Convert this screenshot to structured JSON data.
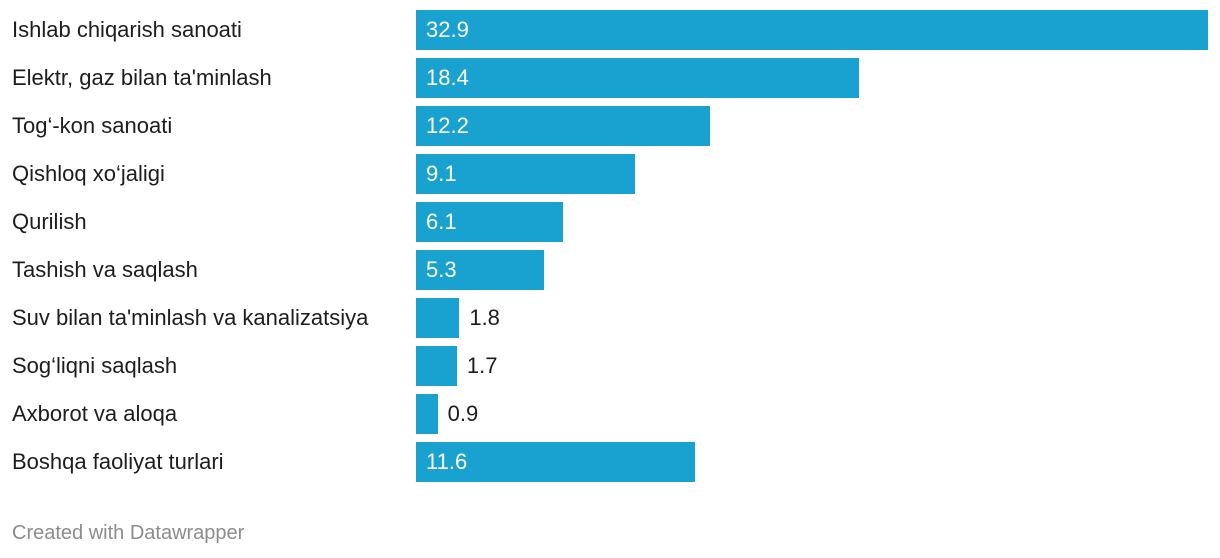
{
  "chart_data": {
    "type": "bar",
    "orientation": "horizontal",
    "categories": [
      "Ishlab chiqarish sanoati",
      "Elektr, gaz bilan ta'minlash",
      "Tog‘-kon sanoati",
      "Qishloq xo‘jaligi",
      "Qurilish",
      "Tashish va saqlash",
      "Suv bilan ta'minlash va kanalizatsiya",
      "Sog‘liqni saqlash",
      "Axborot va aloqa",
      "Boshqa faoliyat turlari"
    ],
    "values": [
      32.9,
      18.4,
      12.2,
      9.1,
      6.1,
      5.3,
      1.8,
      1.7,
      0.9,
      11.6
    ],
    "value_labels": [
      "32.9",
      "18.4",
      "12.2",
      "9.1",
      "6.1",
      "5.3",
      "1.8",
      "1.7",
      "0.9",
      "11.6"
    ],
    "xlim": [
      0,
      32.9
    ],
    "grid": false,
    "color": "#19a2cf"
  },
  "footer": "Created with Datawrapper"
}
